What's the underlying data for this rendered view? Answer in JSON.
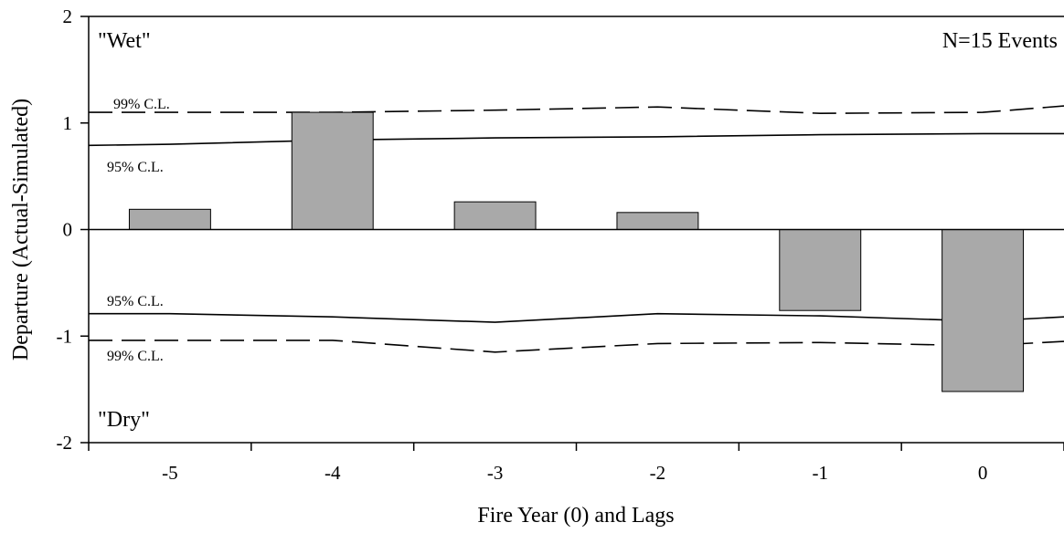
{
  "chart_data": {
    "type": "bar",
    "xlabel": "Fire Year (0) and Lags",
    "ylabel": "Departure (Actual-Simulated)",
    "categories": [
      "-5",
      "-4",
      "-3",
      "-2",
      "-1",
      "0"
    ],
    "values": [
      0.19,
      1.1,
      0.26,
      0.16,
      -0.76,
      -1.52
    ],
    "ylim": [
      -2,
      2
    ],
    "yticks": [
      "2",
      "1",
      "0",
      "-1",
      "-2"
    ],
    "grid": false,
    "bar_color": "#a9a9a9",
    "annotations": {
      "wet": "\"Wet\"",
      "dry": "\"Dry\"",
      "n_events": "N=15 Events",
      "upper_99": "99% C.L.",
      "upper_95": "95% C.L.",
      "lower_95": "95% C.L.",
      "lower_99": "99% C.L."
    },
    "confidence_limits": [
      {
        "name": "upper_99",
        "style": "dashed",
        "x": [
          -5.5,
          -5,
          -4,
          -3,
          -2,
          -1,
          0,
          0.5
        ],
        "y": [
          1.1,
          1.1,
          1.1,
          1.12,
          1.15,
          1.09,
          1.1,
          1.16
        ]
      },
      {
        "name": "upper_95",
        "style": "solid",
        "x": [
          -5.5,
          -5,
          -4,
          -3,
          -2,
          -1,
          0,
          0.5
        ],
        "y": [
          0.79,
          0.8,
          0.84,
          0.86,
          0.87,
          0.89,
          0.9,
          0.9
        ]
      },
      {
        "name": "lower_95",
        "style": "solid",
        "x": [
          -5.5,
          -5,
          -4,
          -3,
          -2,
          -1,
          0,
          0.5
        ],
        "y": [
          -0.79,
          -0.79,
          -0.82,
          -0.87,
          -0.79,
          -0.81,
          -0.86,
          -0.82
        ]
      },
      {
        "name": "lower_99",
        "style": "dashed",
        "x": [
          -5.5,
          -5,
          -4,
          -3,
          -2,
          -1,
          0,
          0.5
        ],
        "y": [
          -1.04,
          -1.04,
          -1.04,
          -1.15,
          -1.07,
          -1.06,
          -1.09,
          -1.05
        ]
      }
    ]
  }
}
